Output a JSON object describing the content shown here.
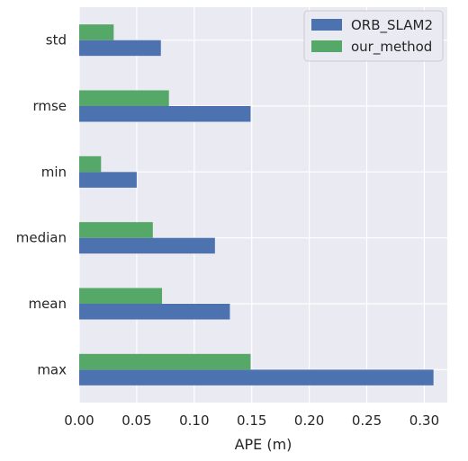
{
  "chart_data": {
    "type": "bar",
    "orientation": "horizontal",
    "categories": [
      "max",
      "mean",
      "median",
      "min",
      "rmse",
      "std"
    ],
    "series": [
      {
        "name": "ORB_SLAM2",
        "color": "#4c72b0",
        "values": [
          0.308,
          0.131,
          0.118,
          0.05,
          0.149,
          0.071
        ]
      },
      {
        "name": "our_method",
        "color": "#55a868",
        "values": [
          0.149,
          0.072,
          0.064,
          0.019,
          0.078,
          0.03
        ]
      }
    ],
    "xlabel": "APE (m)",
    "ylabel": "",
    "xlim": [
      0,
      0.32
    ],
    "xticks": [
      "0.00",
      "0.05",
      "0.10",
      "0.15",
      "0.20",
      "0.25",
      "0.30"
    ],
    "grid": true,
    "legend_position": "top-right",
    "background_color": "#eaeaf2"
  }
}
